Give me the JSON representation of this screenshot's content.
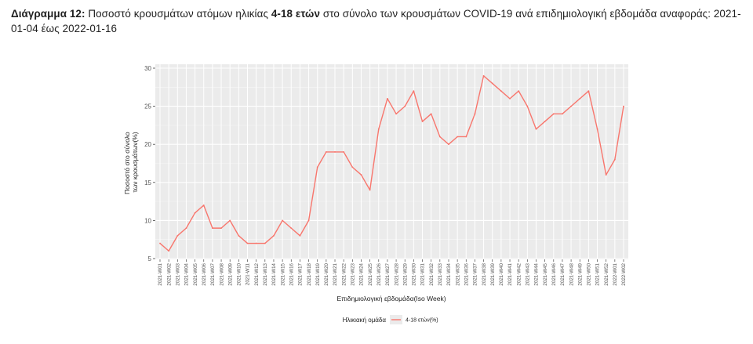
{
  "caption": {
    "lead": "Διάγραμμα 12:",
    "pre": "Ποσοστό κρουσμάτων ατόμων ηλικίας",
    "bold": "4-18 ετών",
    "post": "στο σύνολο των κρουσμάτων COVID-19 ανά επιδημιολογική εβδομάδα αναφοράς: 2021-01-04 έως 2022-01-16"
  },
  "chart_data": {
    "type": "line",
    "ylabel_line1": "Ποσοστό στο σύνολο",
    "ylabel_line2": "των κρουσμάτων(%)",
    "xlabel": "Επιδημιολογική εβδομάδα(Iso Week)",
    "ylim": [
      5,
      30
    ],
    "yticks": [
      5,
      10,
      15,
      20,
      25,
      30
    ],
    "grid": true,
    "legend": {
      "title": "Ηλικιακή ομάδα",
      "position": "bottom"
    },
    "x": [
      "2021-W01",
      "2021-W02",
      "2021-W03",
      "2021-W04",
      "2021-W05",
      "2021-W06",
      "2021-W07",
      "2021-W08",
      "2021-W09",
      "2021-W10",
      "2021-W11",
      "2021-W12",
      "2021-W13",
      "2021-W14",
      "2021-W15",
      "2021-W16",
      "2021-W17",
      "2021-W18",
      "2021-W19",
      "2021-W20",
      "2021-W21",
      "2021-W22",
      "2021-W23",
      "2021-W24",
      "2021-W25",
      "2021-W26",
      "2021-W27",
      "2021-W28",
      "2021-W29",
      "2021-W30",
      "2021-W31",
      "2021-W32",
      "2021-W33",
      "2021-W34",
      "2021-W35",
      "2021-W36",
      "2021-W37",
      "2021-W38",
      "2021-W39",
      "2021-W40",
      "2021-W41",
      "2021-W42",
      "2021-W43",
      "2021-W44",
      "2021-W45",
      "2021-W46",
      "2021-W47",
      "2021-W48",
      "2021-W49",
      "2021-W50",
      "2021-W51",
      "2021-W52",
      "2022-W01",
      "2022-W02"
    ],
    "series": [
      {
        "name": "4-18 ετών(%)",
        "color": "#f8766d",
        "values": [
          7,
          6,
          8,
          9,
          11,
          12,
          9,
          9,
          10,
          8,
          7,
          7,
          7,
          8,
          10,
          9,
          8,
          10,
          17,
          19,
          19,
          19,
          17,
          16,
          14,
          22,
          26,
          24,
          25,
          27,
          23,
          24,
          21,
          20,
          21,
          21,
          24,
          29,
          28,
          27,
          26,
          27,
          25,
          22,
          23,
          24,
          24,
          25,
          26,
          27,
          22,
          16,
          18,
          25
        ]
      }
    ]
  }
}
